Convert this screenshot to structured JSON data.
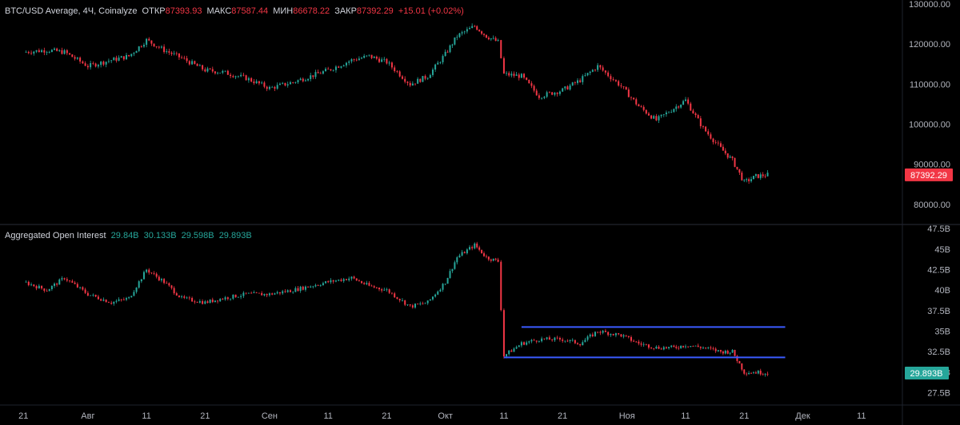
{
  "header": {
    "symbol": "BTC/USD Average, 4Ч, Coinalyze",
    "open_label": "ОТКР",
    "open_value": "87393.93",
    "high_label": "МАКС",
    "high_value": "87587.44",
    "low_label": "МИН",
    "low_value": "86678.22",
    "close_label": "ЗАКР",
    "close_value": "87392.29",
    "change": "+15.01 (+0.02%)"
  },
  "oi_header": {
    "title": "Aggregated Open Interest",
    "v1": "29.84B",
    "v2": "30.133B",
    "v3": "29.598B",
    "v4": "29.893B"
  },
  "colors": {
    "up": "#26a69a",
    "down": "#f23645",
    "line": "#3b5bff",
    "background": "#000000"
  },
  "chart_data": [
    {
      "type": "candlestick",
      "title": "BTC/USD Average, 4Ч, Coinalyze",
      "ylim": [
        75000,
        131000
      ],
      "yticks": [
        80000,
        90000,
        100000,
        110000,
        120000,
        130000
      ],
      "ytick_labels": [
        "80000.00",
        "90000.00",
        "100000.00",
        "110000.00",
        "120000.00",
        "130000.00"
      ],
      "last_price_label": "87392.29",
      "last_price": 87392.29,
      "x": [
        "2025-07-21",
        "2025-07-25",
        "2025-07-28",
        "2025-08-01",
        "2025-08-05",
        "2025-08-08",
        "2025-08-11",
        "2025-08-14",
        "2025-08-17",
        "2025-08-21",
        "2025-08-24",
        "2025-08-28",
        "2025-09-01",
        "2025-09-05",
        "2025-09-08",
        "2025-09-11",
        "2025-09-15",
        "2025-09-18",
        "2025-09-21",
        "2025-09-25",
        "2025-09-28",
        "2025-10-01",
        "2025-10-03",
        "2025-10-06",
        "2025-10-08",
        "2025-10-10",
        "2025-10-11",
        "2025-10-14",
        "2025-10-17",
        "2025-10-21",
        "2025-10-24",
        "2025-10-27",
        "2025-10-31",
        "2025-11-03",
        "2025-11-06",
        "2025-11-09",
        "2025-11-11",
        "2025-11-14",
        "2025-11-17",
        "2025-11-19",
        "2025-11-21",
        "2025-11-23",
        "2025-11-25"
      ],
      "values": [
        118000,
        118500,
        118000,
        114500,
        116000,
        117000,
        121000,
        118500,
        116500,
        113500,
        113000,
        111500,
        109000,
        110500,
        112000,
        113500,
        116000,
        117000,
        115500,
        110000,
        112000,
        117500,
        122000,
        124500,
        122000,
        120500,
        112500,
        112000,
        107000,
        108500,
        111000,
        114500,
        109500,
        104500,
        101000,
        104000,
        106000,
        99000,
        94000,
        91000,
        85500,
        87000,
        87400
      ]
    },
    {
      "type": "candlestick",
      "title": "Aggregated Open Interest",
      "ylim": [
        26,
        48
      ],
      "yticks": [
        27.5,
        30,
        32.5,
        35,
        37.5,
        40,
        42.5,
        45,
        47.5
      ],
      "ytick_labels": [
        "27.5B",
        "30B",
        "32.5B",
        "35B",
        "37.5B",
        "40B",
        "42.5B",
        "45B",
        "47.5B"
      ],
      "last_value_label": "29.893B",
      "last_value": 29.893,
      "x": [
        "2025-07-21",
        "2025-07-25",
        "2025-07-28",
        "2025-08-01",
        "2025-08-05",
        "2025-08-08",
        "2025-08-11",
        "2025-08-14",
        "2025-08-17",
        "2025-08-21",
        "2025-08-24",
        "2025-08-28",
        "2025-09-01",
        "2025-09-05",
        "2025-09-08",
        "2025-09-11",
        "2025-09-15",
        "2025-09-18",
        "2025-09-21",
        "2025-09-25",
        "2025-09-28",
        "2025-10-01",
        "2025-10-03",
        "2025-10-06",
        "2025-10-08",
        "2025-10-10",
        "2025-10-11",
        "2025-10-14",
        "2025-10-17",
        "2025-10-21",
        "2025-10-24",
        "2025-10-27",
        "2025-10-31",
        "2025-11-03",
        "2025-11-06",
        "2025-11-09",
        "2025-11-11",
        "2025-11-14",
        "2025-11-17",
        "2025-11-19",
        "2025-11-21",
        "2025-11-23",
        "2025-11-25"
      ],
      "values": [
        41,
        40,
        41.5,
        39.5,
        38.5,
        39,
        42.5,
        41,
        39,
        38.5,
        39,
        39.5,
        39.5,
        40,
        40.5,
        41,
        41.5,
        40.5,
        40,
        38,
        38.5,
        41,
        44,
        45.5,
        44,
        43.5,
        32,
        33.5,
        34,
        34,
        33.5,
        35,
        34.5,
        33.5,
        33,
        33,
        33.3,
        33,
        32.5,
        32.5,
        30,
        30,
        29.9
      ],
      "annotations": [
        {
          "type": "hline",
          "y": 35.5,
          "x_start": "2025-10-14",
          "x_end": "2025-11-28"
        },
        {
          "type": "hline",
          "y": 31.8,
          "x_start": "2025-10-11",
          "x_end": "2025-11-28"
        }
      ]
    }
  ],
  "x_axis_labels": [
    {
      "label": "21",
      "date": "2025-07-21"
    },
    {
      "label": "Авг",
      "date": "2025-08-01"
    },
    {
      "label": "11",
      "date": "2025-08-11"
    },
    {
      "label": "21",
      "date": "2025-08-21"
    },
    {
      "label": "Сен",
      "date": "2025-09-01"
    },
    {
      "label": "11",
      "date": "2025-09-11"
    },
    {
      "label": "21",
      "date": "2025-09-21"
    },
    {
      "label": "Окт",
      "date": "2025-10-01"
    },
    {
      "label": "11",
      "date": "2025-10-11"
    },
    {
      "label": "21",
      "date": "2025-10-21"
    },
    {
      "label": "Ноя",
      "date": "2025-11-01"
    },
    {
      "label": "11",
      "date": "2025-11-11"
    },
    {
      "label": "21",
      "date": "2025-11-21"
    },
    {
      "label": "Дек",
      "date": "2025-12-01"
    },
    {
      "label": "11",
      "date": "2025-12-11"
    }
  ]
}
